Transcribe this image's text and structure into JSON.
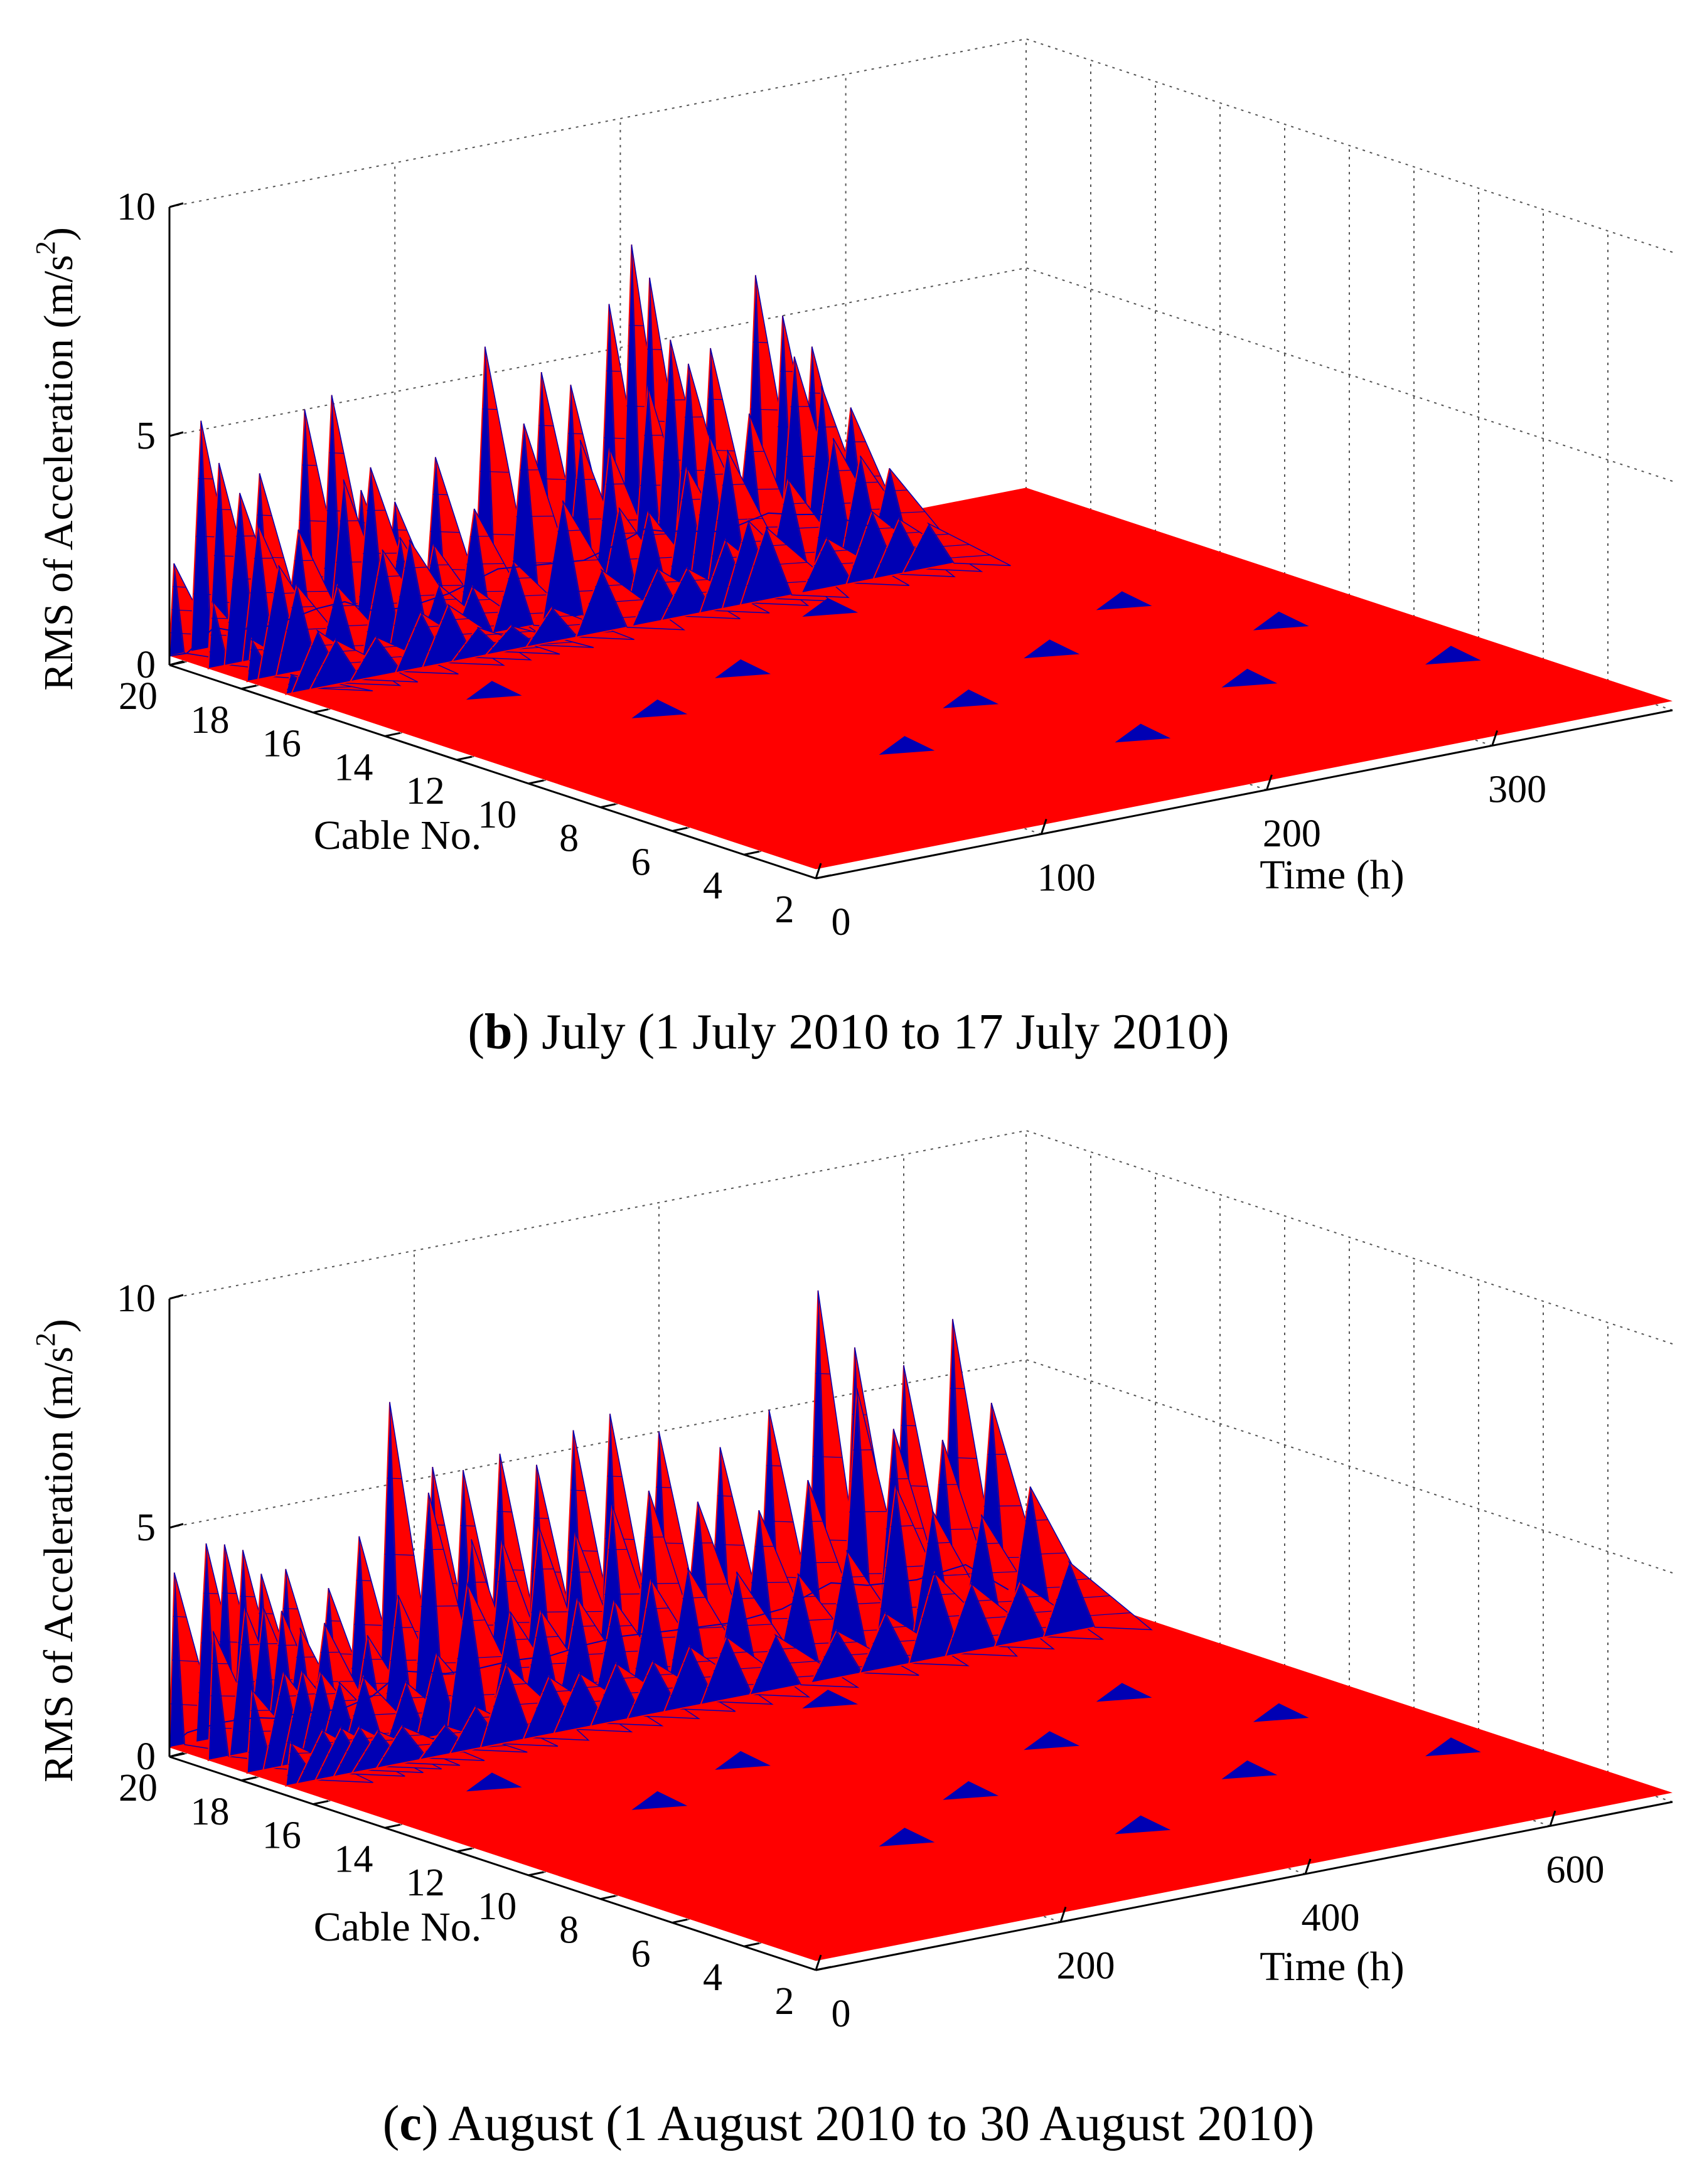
{
  "chart_data": [
    {
      "type": "surface3d",
      "panel": "b",
      "caption_letter": "b",
      "caption_text": "July (1 July 2010 to 17 July 2010)",
      "zlabel_main": "RMS of Acceleration (m/s",
      "zlabel_sup": "2",
      "zlabel_close": ")",
      "xlabel": "Time (h)",
      "ylabel": "Cable No.",
      "zticks": [
        "0",
        "5",
        "10"
      ],
      "xticks": [
        "0",
        "100",
        "200",
        "300"
      ],
      "yticks": [
        "20",
        "18",
        "16",
        "14",
        "12",
        "10",
        "8",
        "6",
        "4",
        "2"
      ],
      "zlim": [
        0,
        10
      ],
      "xlim": [
        0,
        380
      ],
      "cables": [
        2,
        20
      ],
      "surface_colors": {
        "face": "#ff0000",
        "edge": "#0000b4"
      },
      "peaks": [
        {
          "cable": 20,
          "t": 2,
          "z": 2.2
        },
        {
          "cable": 20,
          "t": 14,
          "z": 5.2
        },
        {
          "cable": 20,
          "t": 22,
          "z": 4.2
        },
        {
          "cable": 20,
          "t": 40,
          "z": 3.8
        },
        {
          "cable": 20,
          "t": 60,
          "z": 5.0
        },
        {
          "cable": 20,
          "t": 72,
          "z": 5.2
        },
        {
          "cable": 20,
          "t": 85,
          "z": 3.0
        },
        {
          "cable": 20,
          "t": 100,
          "z": 2.6
        },
        {
          "cable": 20,
          "t": 118,
          "z": 3.4
        },
        {
          "cable": 20,
          "t": 140,
          "z": 5.6
        },
        {
          "cable": 20,
          "t": 165,
          "z": 4.8
        },
        {
          "cable": 20,
          "t": 178,
          "z": 4.4
        },
        {
          "cable": 20,
          "t": 195,
          "z": 6.0
        },
        {
          "cable": 20,
          "t": 205,
          "z": 7.2
        },
        {
          "cable": 20,
          "t": 213,
          "z": 6.4
        },
        {
          "cable": 20,
          "t": 240,
          "z": 4.6
        },
        {
          "cable": 20,
          "t": 260,
          "z": 6.0
        },
        {
          "cable": 20,
          "t": 272,
          "z": 5.0
        },
        {
          "cable": 20,
          "t": 285,
          "z": 4.2
        }
      ]
    },
    {
      "type": "surface3d",
      "panel": "c",
      "caption_letter": "c",
      "caption_text": "August (1 August 2010 to 30 August 2010)",
      "zlabel_main": "RMS of Acceleration (m/s",
      "zlabel_sup": "2",
      "zlabel_close": ")",
      "xlabel": "Time (h)",
      "ylabel": "Cable No.",
      "zticks": [
        "0",
        "5",
        "10"
      ],
      "xticks": [
        "0",
        "200",
        "400",
        "600"
      ],
      "yticks": [
        "20",
        "18",
        "16",
        "14",
        "12",
        "10",
        "8",
        "6",
        "4",
        "2"
      ],
      "zlim": [
        0,
        10
      ],
      "xlim": [
        0,
        700
      ],
      "cables": [
        2,
        20
      ],
      "surface_colors": {
        "face": "#ff0000",
        "edge": "#0000b4"
      },
      "peaks": [
        {
          "cable": 20,
          "t": 4,
          "z": 4.0
        },
        {
          "cable": 20,
          "t": 30,
          "z": 4.5
        },
        {
          "cable": 20,
          "t": 45,
          "z": 4.4
        },
        {
          "cable": 20,
          "t": 60,
          "z": 4.2
        },
        {
          "cable": 20,
          "t": 75,
          "z": 3.6
        },
        {
          "cable": 20,
          "t": 95,
          "z": 3.6
        },
        {
          "cable": 20,
          "t": 130,
          "z": 3.0
        },
        {
          "cable": 20,
          "t": 155,
          "z": 4.0
        },
        {
          "cable": 20,
          "t": 180,
          "z": 6.8
        },
        {
          "cable": 20,
          "t": 215,
          "z": 5.2
        },
        {
          "cable": 20,
          "t": 240,
          "z": 5.0
        },
        {
          "cable": 20,
          "t": 270,
          "z": 5.2
        },
        {
          "cable": 20,
          "t": 300,
          "z": 4.8
        },
        {
          "cable": 20,
          "t": 330,
          "z": 5.4
        },
        {
          "cable": 20,
          "t": 360,
          "z": 5.6
        },
        {
          "cable": 20,
          "t": 400,
          "z": 5.0
        },
        {
          "cable": 20,
          "t": 450,
          "z": 4.4
        },
        {
          "cable": 20,
          "t": 490,
          "z": 5.0
        },
        {
          "cable": 20,
          "t": 530,
          "z": 7.4
        },
        {
          "cable": 20,
          "t": 560,
          "z": 6.0
        },
        {
          "cable": 20,
          "t": 600,
          "z": 5.4
        },
        {
          "cable": 20,
          "t": 640,
          "z": 6.2
        }
      ]
    }
  ]
}
